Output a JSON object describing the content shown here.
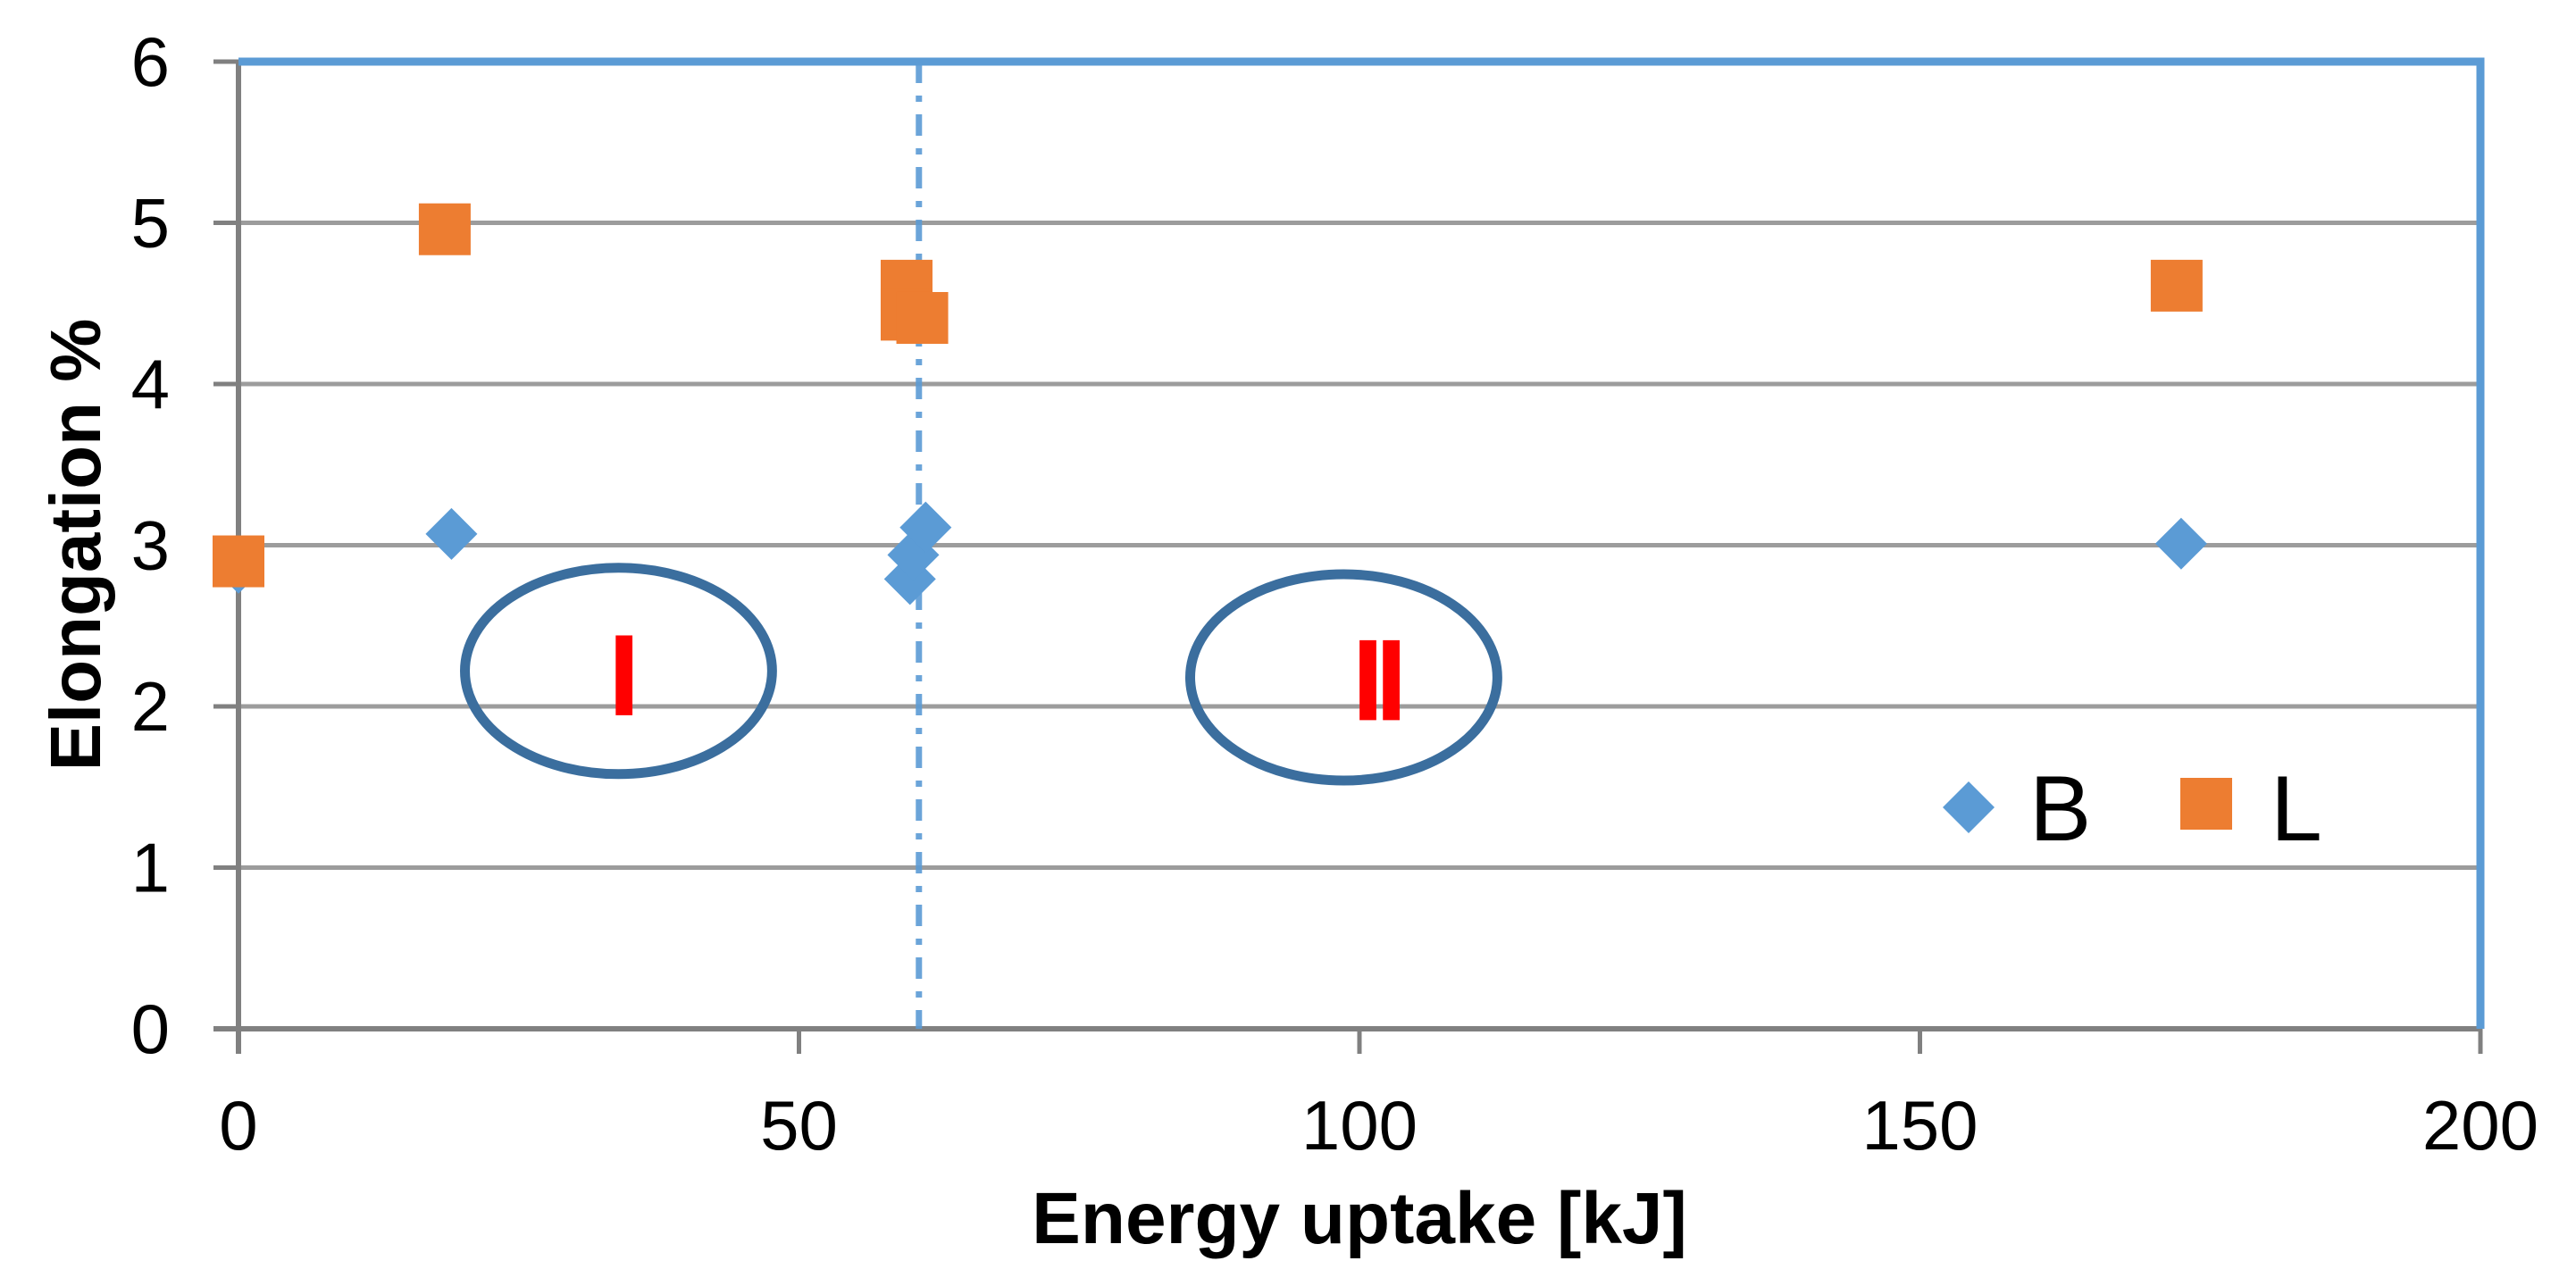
{
  "chart_data": {
    "type": "scatter",
    "title": "",
    "xlabel": "Energy uptake  [kJ]",
    "ylabel": "Elongation %",
    "xlim": [
      0,
      200
    ],
    "ylim": [
      0,
      6
    ],
    "x_ticks": [
      0,
      50,
      100,
      150,
      200
    ],
    "y_ticks": [
      0,
      1,
      2,
      3,
      4,
      5,
      6
    ],
    "gridlines": "horizontal",
    "legend": {
      "position": "inside-right",
      "entries": [
        "B",
        "L"
      ]
    },
    "series": [
      {
        "name": "B",
        "marker": "diamond",
        "color": "#5B9BD5",
        "points": [
          [
            0,
            2.86
          ],
          [
            19,
            3.07
          ],
          [
            59.9,
            2.79
          ],
          [
            60.2,
            2.94
          ],
          [
            61.3,
            3.11
          ],
          [
            173.3,
            3.01
          ]
        ]
      },
      {
        "name": "L",
        "marker": "square",
        "color": "#ED7D31",
        "points": [
          [
            0,
            2.9
          ],
          [
            18.4,
            4.96
          ],
          [
            59.6,
            4.61
          ],
          [
            59.6,
            4.43
          ],
          [
            61,
            4.41
          ],
          [
            172.9,
            4.61
          ]
        ]
      }
    ],
    "annotations": {
      "threshold_line": {
        "x": 60.7,
        "style": "dash-dot",
        "color": "#5B9BD5"
      },
      "ellipses": [
        {
          "label": "I",
          "cx": 33.9,
          "cy": 2.22,
          "rx": 13.7,
          "ry": 0.64,
          "color": "#3B6E9E"
        },
        {
          "label": "II",
          "cx": 98.6,
          "cy": 2.18,
          "rx": 13.7,
          "ry": 0.64,
          "color": "#3B6E9E"
        }
      ],
      "labels": [
        {
          "text": "I",
          "x": 34.0,
          "y": 2.2,
          "color": "#FF0000"
        },
        {
          "text": "II",
          "x": 101.4,
          "y": 2.17,
          "color": "#FF0000"
        }
      ]
    },
    "colors": {
      "series_b": "#5B9BD5",
      "series_l": "#ED7D31",
      "gridline": "#9C9C9C",
      "axis": "#808080",
      "plot_border": "#5B9BD5",
      "ellipse": "#3B6E9E",
      "region_label": "#FF0000",
      "text": "#000000"
    }
  }
}
